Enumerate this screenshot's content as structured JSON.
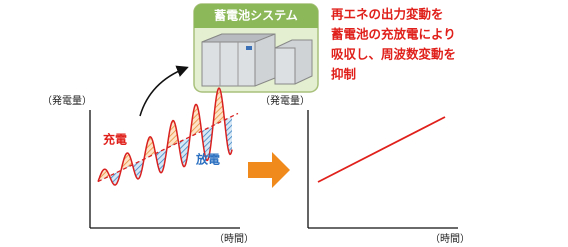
{
  "battery_system": {
    "title": "蓄電池システム"
  },
  "description": {
    "lines": [
      "再エネの出力変動を",
      "蓄電池の充放電により",
      "吸収し、周波数変動を",
      "抑制"
    ]
  },
  "left_chart": {
    "y_label": "（発電量）",
    "x_label": "（時間）",
    "charge_label": "充電",
    "discharge_label": "放電"
  },
  "right_chart": {
    "y_label": "（発電量）",
    "x_label": "（時間）"
  }
}
